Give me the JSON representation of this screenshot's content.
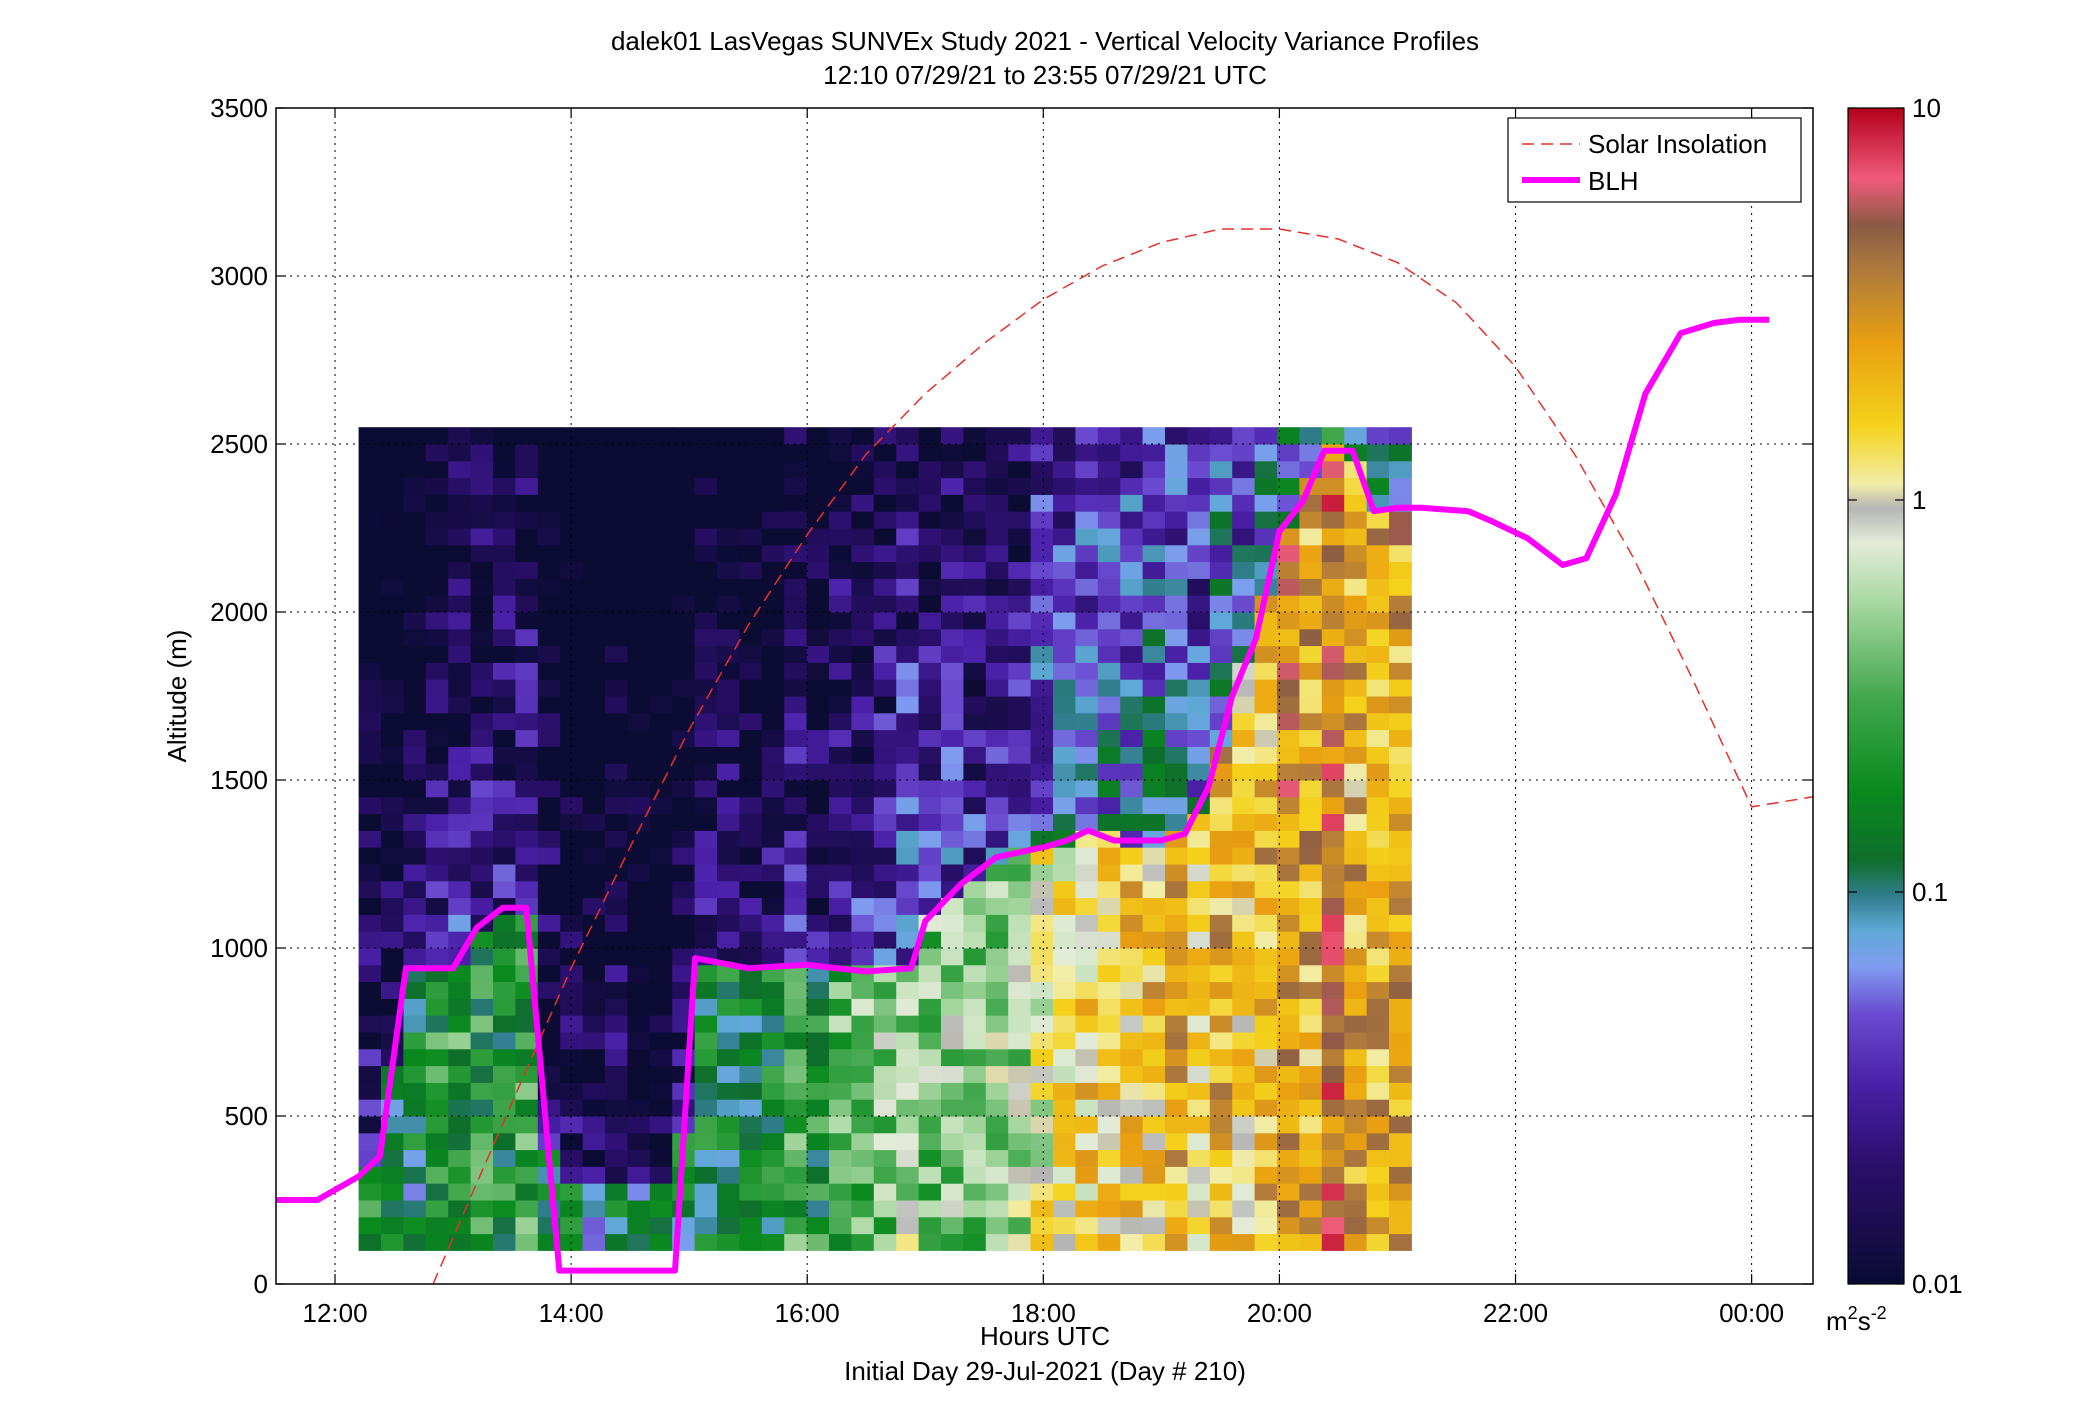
{
  "chart_data": {
    "type": "heatmap",
    "title": "dalek01 LasVegas SUNVEx Study 2021 - Vertical Velocity Variance Profiles",
    "subtitle": "12:10 07/29/21 to 23:55 07/29/21  UTC",
    "xlabel": "Hours UTC",
    "xlabel_secondary": "Initial Day 29-Jul-2021 (Day # 210)",
    "ylabel": "Altitude (m)",
    "xlim": [
      11.5,
      24.52
    ],
    "ylim": [
      0,
      3500
    ],
    "x_ticks": [
      {
        "value": 12,
        "label": "12:00"
      },
      {
        "value": 14,
        "label": "14:00"
      },
      {
        "value": 16,
        "label": "16:00"
      },
      {
        "value": 18,
        "label": "18:00"
      },
      {
        "value": 20,
        "label": "20:00"
      },
      {
        "value": 22,
        "label": "22:00"
      },
      {
        "value": 24,
        "label": "00:00"
      }
    ],
    "y_ticks": [
      {
        "value": 0,
        "label": "0"
      },
      {
        "value": 500,
        "label": "500"
      },
      {
        "value": 1000,
        "label": "1000"
      },
      {
        "value": 1500,
        "label": "1500"
      },
      {
        "value": 2000,
        "label": "2000"
      },
      {
        "value": 2500,
        "label": "2500"
      },
      {
        "value": 3000,
        "label": "3000"
      },
      {
        "value": 3500,
        "label": "3500"
      }
    ],
    "grid": true,
    "legend_position": "top-right",
    "colorbar": {
      "scale": "log",
      "range": [
        0.01,
        10
      ],
      "ticks": [
        {
          "value": 0.01,
          "label": "0.01"
        },
        {
          "value": 0.1,
          "label": "0.1"
        },
        {
          "value": 1,
          "label": "1"
        },
        {
          "value": 10,
          "label": "10"
        }
      ],
      "unit_base": "m",
      "unit_sup1": "2",
      "unit_mid": "s",
      "unit_sup2": "-2"
    },
    "heatmap_description": "Gridded vertical velocity variance (m^2 s^-2), time vs altitude, log color scale; low values aloft early in the day, high values (0.5-3) within the boundary layer in the afternoon",
    "series": [
      {
        "name": "Solar Insolation",
        "style": "dashed",
        "color": "#e8302a",
        "x": [
          12.83,
          13.2,
          13.6,
          14.0,
          14.5,
          15.0,
          15.5,
          16.0,
          16.5,
          17.0,
          17.5,
          18.0,
          18.5,
          19.0,
          19.5,
          20.0,
          20.5,
          21.0,
          21.5,
          22.0,
          22.5,
          23.0,
          23.5,
          24.0,
          24.52
        ],
        "y": [
          0,
          300,
          620,
          940,
          1300,
          1650,
          1960,
          2230,
          2470,
          2650,
          2800,
          2930,
          3030,
          3100,
          3140,
          3140,
          3110,
          3040,
          2920,
          2730,
          2470,
          2160,
          1800,
          1420,
          1450
        ]
      },
      {
        "name": "BLH",
        "style": "solid",
        "color": "#ff00ff",
        "x": [
          11.5,
          11.85,
          12.2,
          12.38,
          12.6,
          13.0,
          13.2,
          13.42,
          13.62,
          13.9,
          14.0,
          14.5,
          14.88,
          15.05,
          15.5,
          16.0,
          16.5,
          16.88,
          17.0,
          17.3,
          17.6,
          18.0,
          18.2,
          18.38,
          18.6,
          19.0,
          19.2,
          19.4,
          19.6,
          19.8,
          20.0,
          20.2,
          20.38,
          20.62,
          20.8,
          21.0,
          21.2,
          21.6,
          21.8,
          22.1,
          22.4,
          22.6,
          22.85,
          23.1,
          23.4,
          23.68,
          23.9,
          24.15
        ],
        "y": [
          250,
          250,
          320,
          380,
          940,
          940,
          1060,
          1120,
          1120,
          40,
          40,
          40,
          40,
          970,
          940,
          950,
          930,
          940,
          1080,
          1190,
          1270,
          1300,
          1320,
          1350,
          1320,
          1320,
          1340,
          1480,
          1750,
          1920,
          2240,
          2330,
          2480,
          2480,
          2300,
          2310,
          2310,
          2300,
          2270,
          2220,
          2140,
          2160,
          2350,
          2650,
          2830,
          2860,
          2870,
          2870
        ]
      }
    ]
  }
}
